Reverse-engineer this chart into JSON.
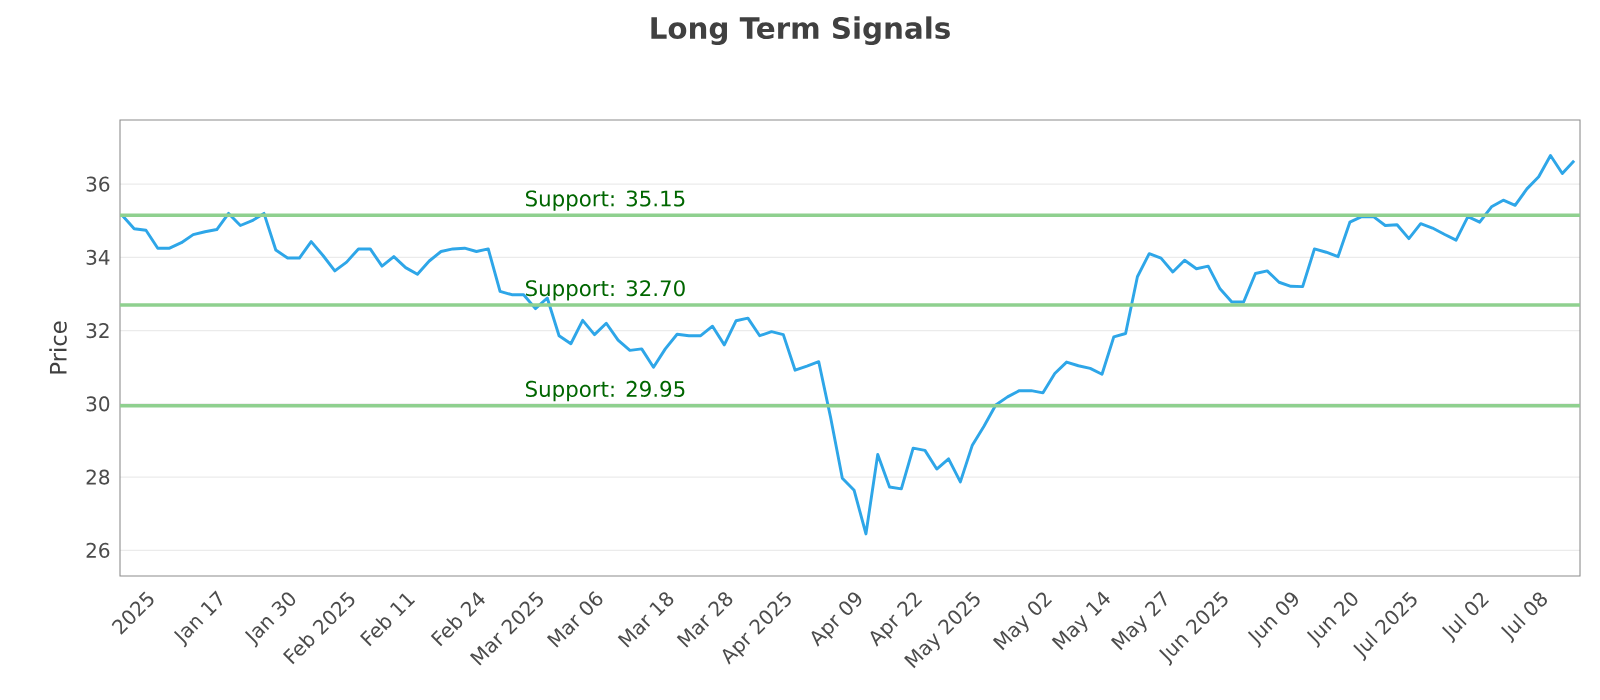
{
  "chart_data": {
    "type": "line",
    "title": "Long Term Signals",
    "ylabel": "Price",
    "categories": [
      null,
      null,
      "2025",
      null,
      null,
      null,
      null,
      null,
      "Jan 17",
      null,
      null,
      null,
      null,
      null,
      "Jan 30",
      null,
      null,
      null,
      null,
      "Feb 2025",
      null,
      null,
      null,
      null,
      "Feb 11",
      null,
      null,
      null,
      null,
      null,
      "Feb 24",
      null,
      null,
      null,
      null,
      "Mar 2025",
      null,
      null,
      null,
      null,
      "Mar 06",
      null,
      null,
      null,
      null,
      null,
      "Mar 18",
      null,
      null,
      null,
      null,
      "Mar 28",
      null,
      null,
      null,
      null,
      "Apr 2025",
      null,
      null,
      null,
      null,
      null,
      "Apr 09",
      null,
      null,
      null,
      null,
      "Apr 22",
      null,
      null,
      null,
      null,
      "May 2025",
      null,
      null,
      null,
      null,
      null,
      "May 02",
      null,
      null,
      null,
      null,
      "May 14",
      null,
      null,
      null,
      null,
      "May 27",
      null,
      null,
      null,
      null,
      "Jun 2025",
      null,
      null,
      null,
      null,
      null,
      "Jun 09",
      null,
      null,
      null,
      null,
      "Jun 20",
      null,
      null,
      null,
      null,
      "Jul 2025",
      null,
      null,
      null,
      null,
      null,
      "Jul 02",
      null,
      null,
      null,
      null,
      "Jul 08",
      null,
      null,
      null
    ],
    "series": [
      {
        "color": "#2ea6e8",
        "values": [
          35.14,
          34.78,
          34.74,
          34.25,
          34.25,
          34.4,
          34.62,
          34.7,
          34.76,
          35.2,
          34.87,
          35.0,
          35.2,
          34.2,
          33.98,
          33.98,
          34.43,
          34.05,
          33.63,
          33.87,
          34.23,
          34.23,
          33.76,
          34.02,
          33.72,
          33.54,
          33.9,
          34.16,
          34.23,
          34.25,
          34.16,
          34.23,
          33.07,
          32.98,
          32.98,
          32.6,
          32.89,
          31.86,
          31.64,
          32.28,
          31.89,
          32.2,
          31.74,
          31.46,
          31.5,
          31.0,
          31.5,
          31.9,
          31.86,
          31.86,
          32.12,
          31.61,
          32.27,
          32.34,
          31.86,
          31.97,
          31.89,
          30.92,
          31.03,
          31.15,
          29.64,
          27.97,
          27.64,
          26.45,
          28.62,
          27.73,
          27.68,
          28.79,
          28.73,
          28.22,
          28.5,
          27.87,
          28.86,
          29.39,
          29.97,
          30.19,
          30.36,
          30.36,
          30.3,
          30.83,
          31.14,
          31.04,
          30.97,
          30.81,
          31.83,
          31.92,
          33.47,
          34.1,
          33.98,
          33.6,
          33.92,
          33.69,
          33.76,
          33.14,
          32.78,
          32.78,
          33.56,
          33.63,
          33.32,
          33.21,
          33.2,
          34.23,
          34.14,
          34.02,
          34.96,
          35.11,
          35.11,
          34.87,
          34.89,
          34.51,
          34.92,
          34.8,
          34.63,
          34.47,
          35.11,
          34.96,
          35.38,
          35.56,
          35.42,
          35.87,
          36.2,
          36.78,
          36.29,
          36.64
        ]
      }
    ],
    "ylim": [
      25.3,
      37.75
    ],
    "yticks": [
      26,
      28,
      30,
      32,
      34,
      36
    ],
    "grid": "y",
    "marker": "none",
    "line_style": "solid",
    "ref_lines": [
      {
        "axis": "y",
        "value": 35.15,
        "label": "Support: 35.15",
        "color": "#8fd08f"
      },
      {
        "axis": "y",
        "value": 32.7,
        "label": "Support: 32.70",
        "color": "#8fd08f"
      },
      {
        "axis": "y",
        "value": 29.95,
        "label": "Support: 29.95",
        "color": "#8fd08f"
      }
    ]
  }
}
